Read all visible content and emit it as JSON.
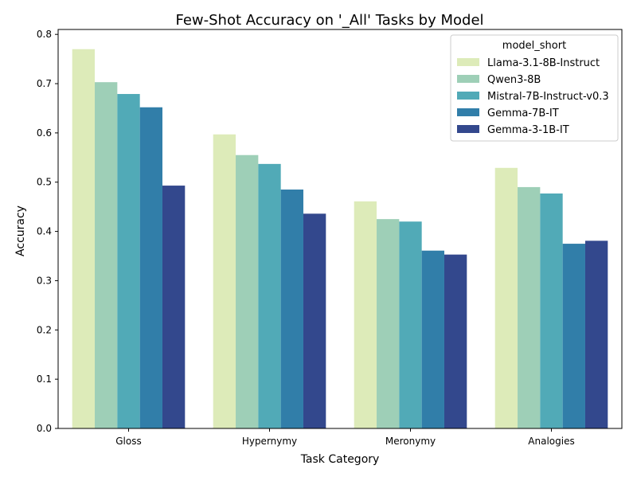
{
  "chart_data": {
    "type": "bar",
    "title": "Few-Shot Accuracy on '_All' Tasks by Model",
    "xlabel": "Task Category",
    "ylabel": "Accuracy",
    "ylim": [
      0,
      0.81
    ],
    "yticks": [
      0.0,
      0.1,
      0.2,
      0.3,
      0.4,
      0.5,
      0.6,
      0.7,
      0.8
    ],
    "ytick_labels": [
      "0.0",
      "0.1",
      "0.2",
      "0.3",
      "0.4",
      "0.5",
      "0.6",
      "0.7",
      "0.8"
    ],
    "categories": [
      "Gloss",
      "Hypernymy",
      "Meronymy",
      "Analogies"
    ],
    "grid": false,
    "legend": {
      "title": "model_short",
      "placement": "top-right"
    },
    "series": [
      {
        "name": "Llama-3.1-8B-Instruct",
        "color": "#ddebb9",
        "values": [
          0.77,
          0.597,
          0.461,
          0.529
        ]
      },
      {
        "name": "Qwen3-8B",
        "color": "#9ecfb7",
        "values": [
          0.703,
          0.555,
          0.425,
          0.49
        ]
      },
      {
        "name": "Mistral-7B-Instruct-v0.3",
        "color": "#51aab7",
        "values": [
          0.679,
          0.537,
          0.42,
          0.477
        ]
      },
      {
        "name": "Gemma-7B-IT",
        "color": "#317ea9",
        "values": [
          0.652,
          0.485,
          0.361,
          0.375
        ]
      },
      {
        "name": "Gemma-3-1B-IT",
        "color": "#33488d",
        "values": [
          0.493,
          0.436,
          0.353,
          0.381
        ]
      }
    ]
  }
}
